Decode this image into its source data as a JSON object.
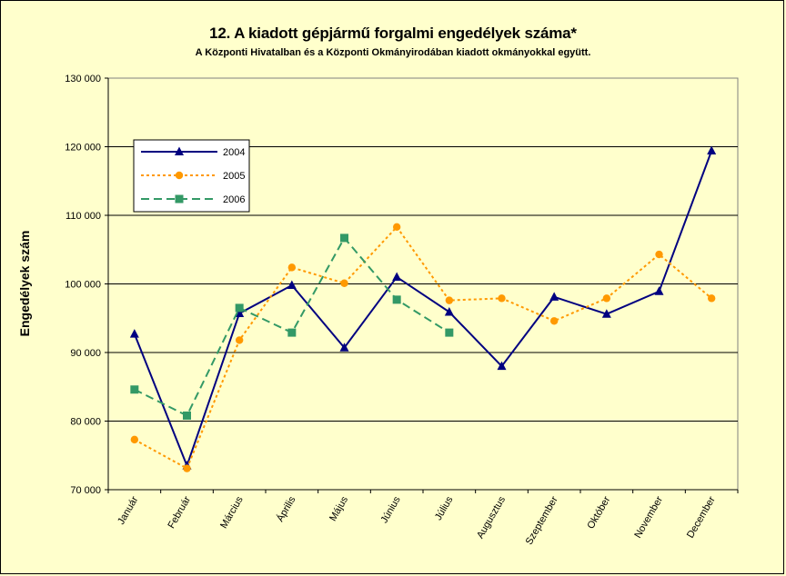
{
  "chart_data": {
    "type": "line",
    "title": "12. A  kiadott gépjármű forgalmi engedélyek száma*",
    "subtitle": "A  Központi Hivatalban és a Központi Okmányirodában kiadott okmányokkal együtt.",
    "xlabel": "",
    "ylabel": "Engedélyek szám",
    "ylim": [
      70000,
      130000
    ],
    "yticks": [
      70000,
      80000,
      90000,
      100000,
      110000,
      120000,
      130000
    ],
    "ytick_labels": [
      "70 000",
      "80 000",
      "90 000",
      "100 000",
      "110 000",
      "120 000",
      "130 000"
    ],
    "grid": true,
    "legend_position": "top-left",
    "categories": [
      "Január",
      "Február",
      "Március",
      "Április",
      "Május",
      "Június",
      "Július",
      "Augusztus",
      "Szeptember",
      "Október",
      "November",
      "December"
    ],
    "series": [
      {
        "name": "2004",
        "color": "#000080",
        "line_style": "solid",
        "marker": "triangle",
        "values": [
          92700,
          73500,
          95700,
          99800,
          90700,
          101000,
          95900,
          88000,
          98100,
          95600,
          98900,
          119400
        ]
      },
      {
        "name": "2005",
        "color": "#ff9900",
        "line_style": "dotted",
        "marker": "circle",
        "values": [
          77300,
          73100,
          91800,
          102400,
          100100,
          108300,
          97600,
          97900,
          94600,
          97900,
          104300,
          97900
        ]
      },
      {
        "name": "2006",
        "color": "#339966",
        "line_style": "dashed",
        "marker": "square",
        "values": [
          84600,
          80800,
          96500,
          92900,
          106700,
          97700,
          92900,
          null,
          null,
          null,
          null,
          null
        ]
      }
    ]
  }
}
